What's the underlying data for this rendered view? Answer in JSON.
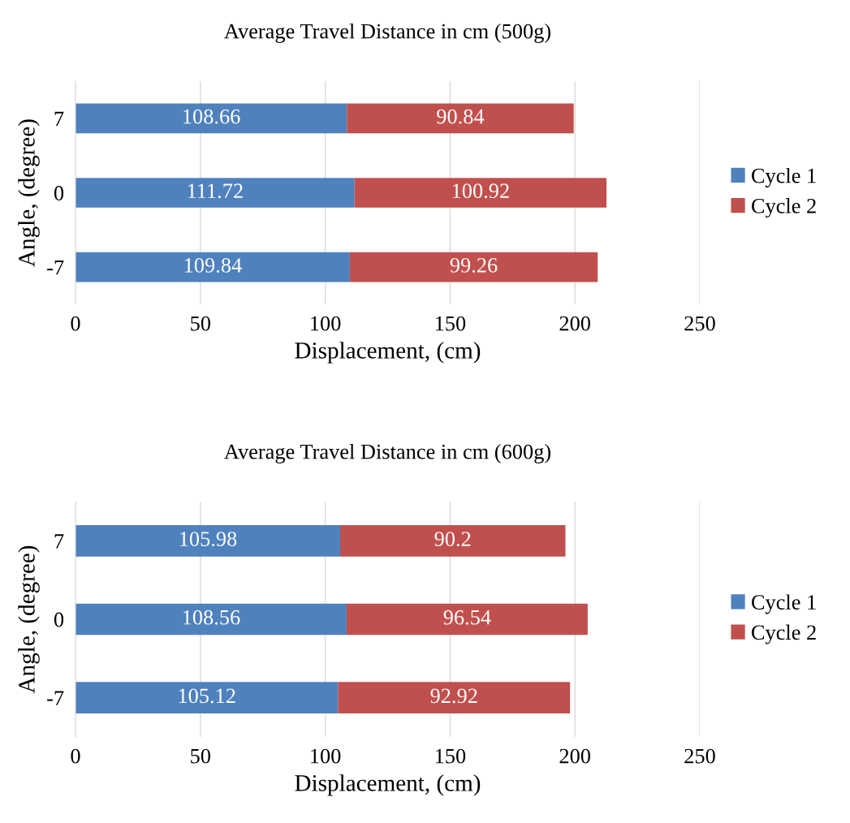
{
  "chart_data": [
    {
      "type": "bar",
      "title": "Average Travel Distance in cm (500g)",
      "xlabel": "Displacement, (cm)",
      "ylabel": "Angle, (degree)",
      "orientation": "horizontal",
      "stacked": true,
      "categories": [
        "7",
        "0",
        "-7"
      ],
      "series": [
        {
          "name": "Cycle 1",
          "color": "#4f81bd",
          "values": [
            108.66,
            111.72,
            109.84
          ]
        },
        {
          "name": "Cycle 2",
          "color": "#c0504d",
          "values": [
            90.84,
            100.92,
            99.26
          ]
        }
      ],
      "xlim": [
        0,
        250
      ],
      "xticks": [
        0,
        50,
        100,
        150,
        200,
        250
      ],
      "grid": "x",
      "legend": "right",
      "data_labels": true
    },
    {
      "type": "bar",
      "title": "Average Travel Distance in cm (600g)",
      "xlabel": "Displacement, (cm)",
      "ylabel": "Angle, (degree)",
      "orientation": "horizontal",
      "stacked": true,
      "categories": [
        "7",
        "0",
        "-7"
      ],
      "series": [
        {
          "name": "Cycle 1",
          "color": "#4f81bd",
          "values": [
            105.98,
            108.56,
            105.12
          ]
        },
        {
          "name": "Cycle 2",
          "color": "#c0504d",
          "values": [
            90.2,
            96.54,
            92.92
          ]
        }
      ],
      "xlim": [
        0,
        250
      ],
      "xticks": [
        0,
        50,
        100,
        150,
        200,
        250
      ],
      "grid": "x",
      "legend": "right",
      "data_labels": true
    }
  ]
}
